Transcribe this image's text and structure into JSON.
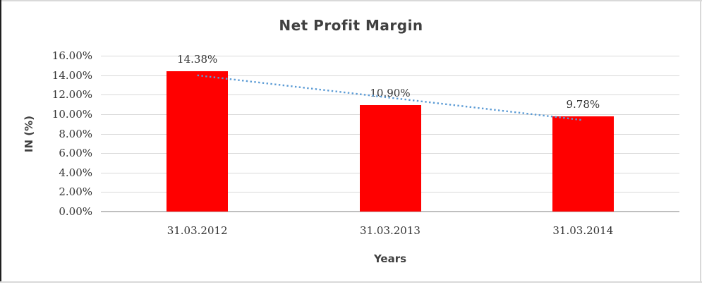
{
  "chart_data": {
    "type": "bar",
    "title": "Net Profit Margin",
    "xlabel": "Years",
    "ylabel": "IN (%)",
    "categories": [
      "31.03.2012",
      "31.03.2013",
      "31.03.2014"
    ],
    "values": [
      14.38,
      10.9,
      9.78
    ],
    "data_labels": [
      "14.38%",
      "10.90%",
      "9.78%"
    ],
    "ylim": [
      0,
      16
    ],
    "yticks": [
      {
        "value": 16,
        "label": "16.00%"
      },
      {
        "value": 14,
        "label": "14.00%"
      },
      {
        "value": 12,
        "label": "12.00%"
      },
      {
        "value": 10,
        "label": "10.00%"
      },
      {
        "value": 8,
        "label": "8.00%"
      },
      {
        "value": 6,
        "label": "6.00%"
      },
      {
        "value": 4,
        "label": "4.00%"
      },
      {
        "value": 2,
        "label": "2.00%"
      },
      {
        "value": 0,
        "label": "0.00%"
      }
    ],
    "grid": true,
    "legend_position": "none",
    "bar_color": "#ff0000",
    "trendline": {
      "kind": "linear",
      "style": "dotted",
      "color": "#5b9bd5"
    },
    "gridline_color": "#d9d9d9",
    "axis_line_color": "#bfbfbf",
    "text_color": "#404040"
  }
}
